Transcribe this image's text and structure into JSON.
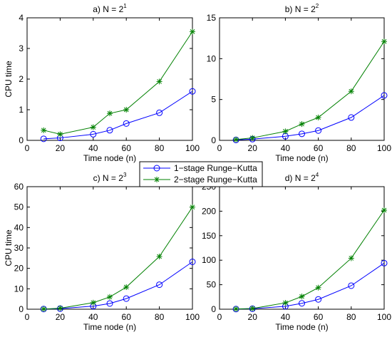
{
  "chart_data": [
    {
      "type": "line",
      "title_prefix": "a) N = 2",
      "title_exponent": "1",
      "xlabel": "Time node (n)",
      "ylabel": "CPU time",
      "xlim": [
        0,
        100
      ],
      "ylim": [
        0,
        4
      ],
      "x_ticks": [
        0,
        20,
        40,
        60,
        80,
        100
      ],
      "y_ticks": [
        0,
        1,
        2,
        3,
        4
      ],
      "x": [
        10,
        20,
        40,
        50,
        60,
        80,
        100
      ],
      "series": [
        {
          "name": "1-stage Runge-Kutta",
          "color": "#0000ff",
          "marker": "circle",
          "values": [
            0.05,
            0.08,
            0.2,
            0.33,
            0.55,
            0.9,
            1.6
          ]
        },
        {
          "name": "2-stage Runge-Kutta",
          "color": "#008000",
          "marker": "star",
          "values": [
            0.33,
            0.2,
            0.43,
            0.88,
            1.0,
            1.92,
            3.55
          ]
        }
      ]
    },
    {
      "type": "line",
      "title_prefix": "b) N = 2",
      "title_exponent": "2",
      "xlabel": "Time node (n)",
      "ylabel": "",
      "xlim": [
        0,
        100
      ],
      "ylim": [
        0,
        15
      ],
      "x_ticks": [
        0,
        20,
        40,
        60,
        80,
        100
      ],
      "y_ticks": [
        0,
        5,
        10,
        15
      ],
      "x": [
        10,
        20,
        40,
        50,
        60,
        80,
        100
      ],
      "series": [
        {
          "name": "1-stage Runge-Kutta",
          "color": "#0000ff",
          "marker": "circle",
          "values": [
            0.05,
            0.15,
            0.5,
            0.8,
            1.2,
            2.8,
            5.5
          ]
        },
        {
          "name": "2-stage Runge-Kutta",
          "color": "#008000",
          "marker": "star",
          "values": [
            0.1,
            0.3,
            1.1,
            2.0,
            2.8,
            6.0,
            12.1
          ]
        }
      ]
    },
    {
      "type": "line",
      "title_prefix": "c) N = 2",
      "title_exponent": "3",
      "xlabel": "Time node (n)",
      "ylabel": "CPU time",
      "xlim": [
        0,
        100
      ],
      "ylim": [
        0,
        60
      ],
      "x_ticks": [
        0,
        20,
        40,
        60,
        80,
        100
      ],
      "y_ticks": [
        0,
        10,
        20,
        30,
        40,
        50,
        60
      ],
      "x": [
        10,
        20,
        40,
        50,
        60,
        80,
        100
      ],
      "series": [
        {
          "name": "1-stage Runge-Kutta",
          "color": "#0000ff",
          "marker": "circle",
          "values": [
            0.1,
            0.3,
            1.5,
            2.8,
            5.2,
            12.0,
            23.2
          ]
        },
        {
          "name": "2-stage Runge-Kutta",
          "color": "#008000",
          "marker": "star",
          "values": [
            0.1,
            0.5,
            3.2,
            6.0,
            10.8,
            25.8,
            50.0
          ]
        }
      ]
    },
    {
      "type": "line",
      "title_prefix": "d) N = 2",
      "title_exponent": "4",
      "xlabel": "Time node (n)",
      "ylabel": "",
      "xlim": [
        0,
        100
      ],
      "ylim": [
        0,
        250
      ],
      "x_ticks": [
        0,
        20,
        40,
        60,
        80,
        100
      ],
      "y_ticks": [
        0,
        50,
        100,
        150,
        200,
        250
      ],
      "x": [
        10,
        20,
        40,
        50,
        60,
        80,
        100
      ],
      "series": [
        {
          "name": "1-stage Runge-Kutta",
          "color": "#0000ff",
          "marker": "circle",
          "values": [
            0.3,
            1.0,
            6.0,
            12.0,
            20.0,
            48.0,
            94.0
          ]
        },
        {
          "name": "2-stage Runge-Kutta",
          "color": "#008000",
          "marker": "star",
          "values": [
            0.5,
            1.5,
            13.0,
            26.0,
            44.0,
            104.0,
            202.0
          ]
        }
      ]
    }
  ],
  "legend": {
    "items": [
      {
        "label": "1−stage Runge−Kutta",
        "color": "#0000ff",
        "marker": "circle"
      },
      {
        "label": "2−stage Runge−Kutta",
        "color": "#008000",
        "marker": "star"
      }
    ]
  }
}
